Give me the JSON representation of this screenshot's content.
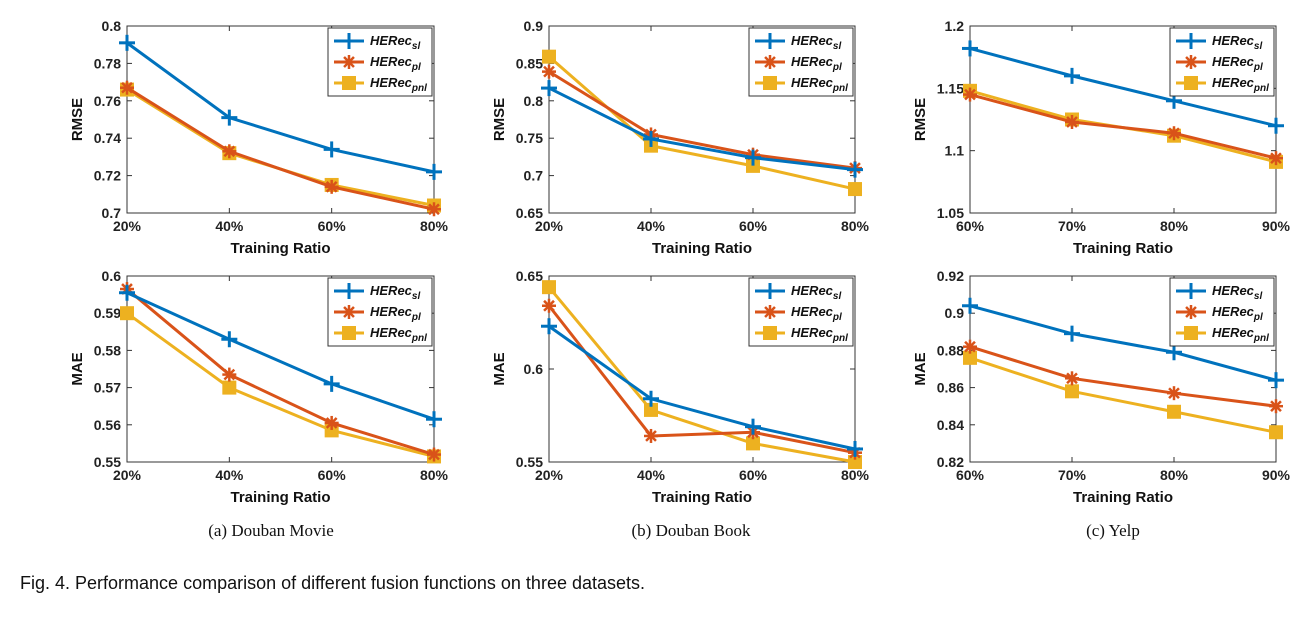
{
  "colors": {
    "sl": "#0072BD",
    "pl": "#D95319",
    "pnl": "#EDB120"
  },
  "legend": [
    {
      "base": "HERec",
      "sub": "sl",
      "marker": "plus",
      "colorKey": "sl"
    },
    {
      "base": "HERec",
      "sub": "pl",
      "marker": "asterisk",
      "colorKey": "pl"
    },
    {
      "base": "HERec",
      "sub": "pnl",
      "marker": "square",
      "colorKey": "pnl"
    }
  ],
  "captions": {
    "sub": [
      "(a)  Douban Movie",
      "(b)  Douban Book",
      "(c)  Yelp"
    ],
    "figure": "Fig. 4. Performance comparison of different fusion functions on three datasets."
  },
  "chart_data": [
    {
      "type": "line",
      "xlabel": "Training Ratio",
      "ylabel": "RMSE",
      "categories": [
        "20%",
        "40%",
        "60%",
        "80%"
      ],
      "ylim": [
        0.7,
        0.8
      ],
      "yticks": [
        "0.7",
        "0.72",
        "0.74",
        "0.76",
        "0.78",
        "0.8"
      ],
      "legend_position": "top-right",
      "series": [
        {
          "key": "sl",
          "values": [
            0.791,
            0.751,
            0.734,
            0.722
          ]
        },
        {
          "key": "pl",
          "values": [
            0.767,
            0.733,
            0.714,
            0.702
          ]
        },
        {
          "key": "pnl",
          "values": [
            0.766,
            0.732,
            0.715,
            0.704
          ]
        }
      ]
    },
    {
      "type": "line",
      "xlabel": "Training Ratio",
      "ylabel": "RMSE",
      "categories": [
        "20%",
        "40%",
        "60%",
        "80%"
      ],
      "ylim": [
        0.65,
        0.9
      ],
      "yticks": [
        "0.65",
        "0.7",
        "0.75",
        "0.8",
        "0.85",
        "0.9"
      ],
      "legend_position": "top-right",
      "series": [
        {
          "key": "sl",
          "values": [
            0.817,
            0.749,
            0.724,
            0.708
          ]
        },
        {
          "key": "pl",
          "values": [
            0.839,
            0.755,
            0.728,
            0.71
          ]
        },
        {
          "key": "pnl",
          "values": [
            0.859,
            0.74,
            0.713,
            0.682
          ]
        }
      ]
    },
    {
      "type": "line",
      "xlabel": "Training Ratio",
      "ylabel": "RMSE",
      "categories": [
        "60%",
        "70%",
        "80%",
        "90%"
      ],
      "ylim": [
        1.05,
        1.2
      ],
      "yticks": [
        "1.05",
        "1.1",
        "1.15",
        "1.2"
      ],
      "legend_position": "top-right",
      "series": [
        {
          "key": "sl",
          "values": [
            1.182,
            1.16,
            1.14,
            1.12
          ]
        },
        {
          "key": "pl",
          "values": [
            1.145,
            1.123,
            1.114,
            1.094
          ]
        },
        {
          "key": "pnl",
          "values": [
            1.148,
            1.125,
            1.112,
            1.091
          ]
        }
      ]
    },
    {
      "type": "line",
      "xlabel": "Training Ratio",
      "ylabel": "MAE",
      "categories": [
        "20%",
        "40%",
        "60%",
        "80%"
      ],
      "ylim": [
        0.55,
        0.6
      ],
      "yticks": [
        "0.55",
        "0.56",
        "0.57",
        "0.58",
        "0.59",
        "0.6"
      ],
      "legend_position": "top-right",
      "series": [
        {
          "key": "sl",
          "values": [
            0.5955,
            0.583,
            0.571,
            0.5615
          ]
        },
        {
          "key": "pl",
          "values": [
            0.5965,
            0.5735,
            0.5605,
            0.552
          ]
        },
        {
          "key": "pnl",
          "values": [
            0.59,
            0.57,
            0.5585,
            0.5515
          ]
        }
      ]
    },
    {
      "type": "line",
      "xlabel": "Training Ratio",
      "ylabel": "MAE",
      "categories": [
        "20%",
        "40%",
        "60%",
        "80%"
      ],
      "ylim": [
        0.55,
        0.65
      ],
      "yticks": [
        "0.55",
        "0.6",
        "0.65"
      ],
      "legend_position": "top-right",
      "series": [
        {
          "key": "sl",
          "values": [
            0.623,
            0.584,
            0.569,
            0.557
          ]
        },
        {
          "key": "pl",
          "values": [
            0.634,
            0.564,
            0.566,
            0.555
          ]
        },
        {
          "key": "pnl",
          "values": [
            0.644,
            0.578,
            0.56,
            0.55
          ]
        }
      ]
    },
    {
      "type": "line",
      "xlabel": "Training Ratio",
      "ylabel": "MAE",
      "categories": [
        "60%",
        "70%",
        "80%",
        "90%"
      ],
      "ylim": [
        0.82,
        0.92
      ],
      "yticks": [
        "0.82",
        "0.84",
        "0.86",
        "0.88",
        "0.9",
        "0.92"
      ],
      "legend_position": "top-right",
      "series": [
        {
          "key": "sl",
          "values": [
            0.904,
            0.889,
            0.879,
            0.864
          ]
        },
        {
          "key": "pl",
          "values": [
            0.882,
            0.865,
            0.857,
            0.85
          ]
        },
        {
          "key": "pnl",
          "values": [
            0.876,
            0.858,
            0.847,
            0.836
          ]
        }
      ]
    }
  ]
}
